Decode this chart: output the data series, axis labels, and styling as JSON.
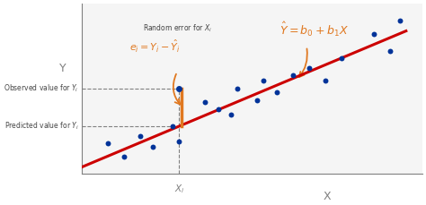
{
  "scatter_points": [
    [
      0.08,
      0.18
    ],
    [
      0.13,
      0.1
    ],
    [
      0.18,
      0.22
    ],
    [
      0.22,
      0.16
    ],
    [
      0.28,
      0.28
    ],
    [
      0.3,
      0.19
    ],
    [
      0.38,
      0.42
    ],
    [
      0.42,
      0.38
    ],
    [
      0.46,
      0.35
    ],
    [
      0.48,
      0.5
    ],
    [
      0.54,
      0.43
    ],
    [
      0.56,
      0.55
    ],
    [
      0.6,
      0.48
    ],
    [
      0.65,
      0.58
    ],
    [
      0.7,
      0.62
    ],
    [
      0.75,
      0.55
    ],
    [
      0.8,
      0.68
    ],
    [
      0.9,
      0.82
    ],
    [
      0.95,
      0.72
    ],
    [
      0.98,
      0.9
    ]
  ],
  "line_x": [
    0.0,
    1.0
  ],
  "line_y": [
    0.04,
    0.84
  ],
  "dot_color": "#003399",
  "line_color": "#cc0000",
  "annotation_color": "#e07820",
  "background_color": "#f5f5f5",
  "xi": 0.3,
  "observed_yi": 0.5,
  "xlim": [
    0.0,
    1.05
  ],
  "ylim": [
    0.0,
    1.0
  ],
  "ylabel": "Y",
  "xlabel": "X",
  "obs_label": "Observed value for $Y_i$",
  "pred_label": "Predicted value for $Y_i$",
  "xi_label": "$X_i$",
  "formula": "$\\hat{Y} = b_0 + b_1 X$",
  "error_label1": "Random error for $X_i$",
  "error_label2": "$e_i = Y_i - \\hat{Y}_i$"
}
